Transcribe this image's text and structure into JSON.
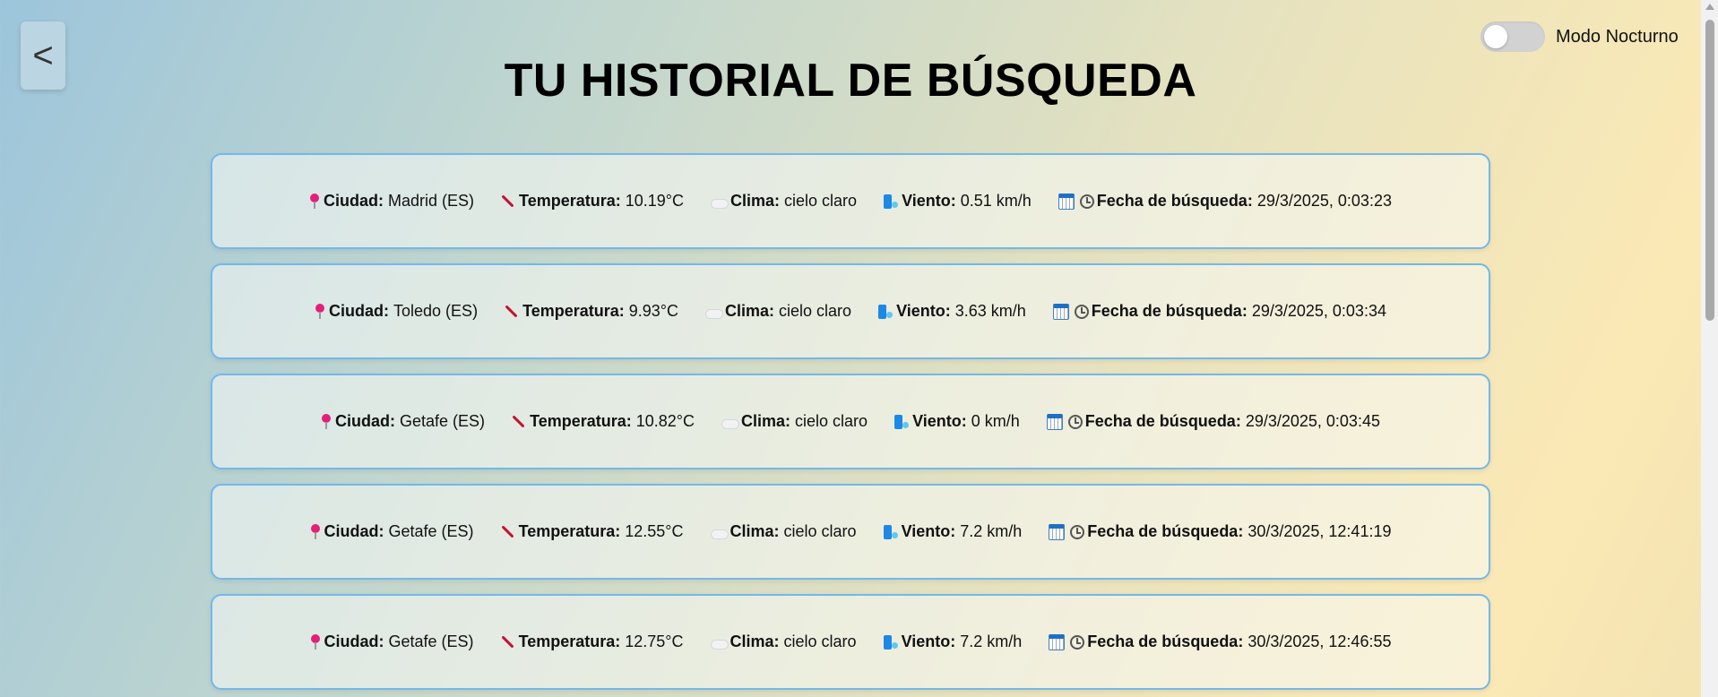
{
  "nav": {
    "back_label": "<"
  },
  "night_mode": {
    "label": "Modo Nocturno",
    "enabled": false
  },
  "page": {
    "title": "TU HISTORIAL DE BÚSQUEDA"
  },
  "field_labels": {
    "city": "Ciudad:",
    "temperature": "Temperatura:",
    "weather": "Clima:",
    "wind": "Viento:",
    "date": "Fecha de búsqueda:"
  },
  "icons": {
    "city": "pin-icon",
    "temperature": "thermometer-icon",
    "weather": "cloud-icon",
    "wind": "wind-icon",
    "date": [
      "calendar-icon",
      "clock-icon"
    ]
  },
  "colors": {
    "card_border": "#73b8ea",
    "pin": "#e41f7a",
    "thermometer": "#c8102e"
  },
  "history": [
    {
      "city": "Madrid (ES)",
      "temperature": "10.19°C",
      "weather": "cielo claro",
      "wind": "0.51 km/h",
      "date": "29/3/2025, 0:03:23"
    },
    {
      "city": "Toledo (ES)",
      "temperature": "9.93°C",
      "weather": "cielo claro",
      "wind": "3.63 km/h",
      "date": "29/3/2025, 0:03:34"
    },
    {
      "city": "Getafe (ES)",
      "temperature": "10.82°C",
      "weather": "cielo claro",
      "wind": "0 km/h",
      "date": "29/3/2025, 0:03:45"
    },
    {
      "city": "Getafe (ES)",
      "temperature": "12.55°C",
      "weather": "cielo claro",
      "wind": "7.2 km/h",
      "date": "30/3/2025, 12:41:19"
    },
    {
      "city": "Getafe (ES)",
      "temperature": "12.75°C",
      "weather": "cielo claro",
      "wind": "7.2 km/h",
      "date": "30/3/2025, 12:46:55"
    }
  ]
}
